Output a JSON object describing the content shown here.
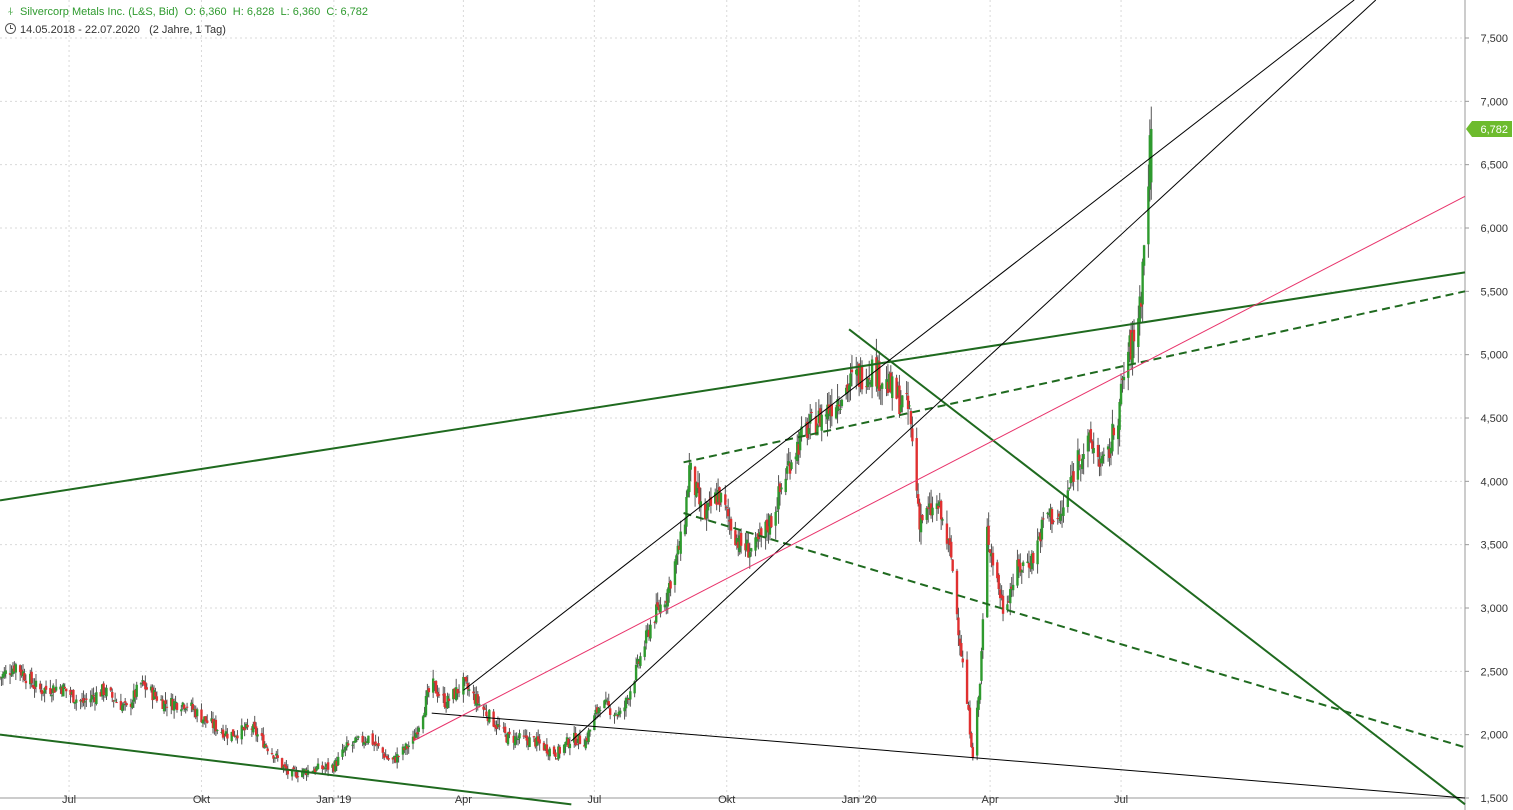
{
  "header": {
    "symbol_icon": "candlestick-icon",
    "instrument": "Silvercorp Metals Inc. (L&S, Bid)",
    "ohlc": {
      "open": "O: 6,360",
      "high": "H: 6,828",
      "low": "L: 6,360",
      "close": "C: 6,782"
    },
    "range": "14.05.2018 - 22.07.2020",
    "range_note": "(2 Jahre, 1 Tag)",
    "range_icon": "clock-icon"
  },
  "chart_data": {
    "type": "candlestick",
    "title": "Silvercorp Metals Inc. (L&S, Bid)",
    "period": "14.05.2018 - 22.07.2020",
    "y_axis": {
      "side": "right",
      "min": 1.5,
      "max": 7.8,
      "ticks": [
        "1,500",
        "2,000",
        "2,500",
        "3,000",
        "3,500",
        "4,000",
        "4,500",
        "5,000",
        "5,500",
        "6,000",
        "6,500",
        "7,000",
        "7,500"
      ],
      "tick_values": [
        1.5,
        2.0,
        2.5,
        3.0,
        3.5,
        4.0,
        4.5,
        5.0,
        5.5,
        6.0,
        6.5,
        7.0,
        7.5
      ]
    },
    "x_axis": {
      "start": "2018-05-14",
      "end": "2021-02-25",
      "labels": [
        "Jul",
        "Okt",
        "Jan '19",
        "Apr",
        "Jul",
        "Okt",
        "Jan '20",
        "Apr",
        "Jul"
      ],
      "label_dates": [
        "2018-07-01",
        "2018-10-01",
        "2019-01-01",
        "2019-04-01",
        "2019-07-01",
        "2019-10-01",
        "2020-01-01",
        "2020-04-01",
        "2020-07-01"
      ]
    },
    "grid": true,
    "last_price": {
      "label": "6,782",
      "value": 6.782,
      "color": "#6dbb2d"
    },
    "colors": {
      "up": "#2e9a2e",
      "down": "#e03030",
      "trend_dark": "#1f6a1f",
      "trend_black": "#000000",
      "trend_pink": "#e8336b"
    },
    "price_path": [
      [
        "2018-05-14",
        2.45
      ],
      [
        "2018-05-25",
        2.55
      ],
      [
        "2018-06-10",
        2.35
      ],
      [
        "2018-06-25",
        2.38
      ],
      [
        "2018-07-10",
        2.25
      ],
      [
        "2018-07-25",
        2.35
      ],
      [
        "2018-08-10",
        2.2
      ],
      [
        "2018-08-20",
        2.4
      ],
      [
        "2018-09-05",
        2.25
      ],
      [
        "2018-09-20",
        2.25
      ],
      [
        "2018-10-05",
        2.1
      ],
      [
        "2018-10-20",
        2.0
      ],
      [
        "2018-11-05",
        2.05
      ],
      [
        "2018-11-20",
        1.85
      ],
      [
        "2018-12-01",
        1.68
      ],
      [
        "2018-12-15",
        1.72
      ],
      [
        "2019-01-01",
        1.75
      ],
      [
        "2019-01-10",
        1.9
      ],
      [
        "2019-01-25",
        1.98
      ],
      [
        "2019-02-10",
        1.78
      ],
      [
        "2019-02-25",
        1.95
      ],
      [
        "2019-03-10",
        2.4
      ],
      [
        "2019-03-20",
        2.25
      ],
      [
        "2019-04-01",
        2.4
      ],
      [
        "2019-04-15",
        2.2
      ],
      [
        "2019-05-01",
        1.98
      ],
      [
        "2019-05-20",
        1.95
      ],
      [
        "2019-06-05",
        1.85
      ],
      [
        "2019-06-15",
        1.97
      ],
      [
        "2019-06-25",
        1.95
      ],
      [
        "2019-07-05",
        2.25
      ],
      [
        "2019-07-20",
        2.15
      ],
      [
        "2019-07-30",
        2.5
      ],
      [
        "2019-08-10",
        2.9
      ],
      [
        "2019-08-20",
        3.1
      ],
      [
        "2019-09-01",
        3.6
      ],
      [
        "2019-09-05",
        4.1
      ],
      [
        "2019-09-15",
        3.7
      ],
      [
        "2019-09-25",
        3.9
      ],
      [
        "2019-10-10",
        3.5
      ],
      [
        "2019-10-20",
        3.45
      ],
      [
        "2019-11-01",
        3.7
      ],
      [
        "2019-11-15",
        4.2
      ],
      [
        "2019-11-25",
        4.4
      ],
      [
        "2019-12-05",
        4.5
      ],
      [
        "2019-12-20",
        4.7
      ],
      [
        "2019-12-28",
        4.8
      ],
      [
        "2020-01-10",
        4.9
      ],
      [
        "2020-01-25",
        4.7
      ],
      [
        "2020-02-05",
        4.55
      ],
      [
        "2020-02-12",
        3.7
      ],
      [
        "2020-02-25",
        3.8
      ],
      [
        "2020-03-05",
        3.4
      ],
      [
        "2020-03-10",
        2.85
      ],
      [
        "2020-03-20",
        1.85
      ],
      [
        "2020-03-25",
        2.4
      ],
      [
        "2020-03-30",
        3.6
      ],
      [
        "2020-04-10",
        3.0
      ],
      [
        "2020-04-20",
        3.3
      ],
      [
        "2020-05-01",
        3.4
      ],
      [
        "2020-05-10",
        3.75
      ],
      [
        "2020-05-20",
        3.7
      ],
      [
        "2020-06-01",
        4.2
      ],
      [
        "2020-06-10",
        4.3
      ],
      [
        "2020-06-20",
        4.1
      ],
      [
        "2020-06-30",
        4.6
      ],
      [
        "2020-07-05",
        5.0
      ],
      [
        "2020-07-10",
        5.1
      ],
      [
        "2020-07-15",
        5.5
      ],
      [
        "2020-07-22",
        6.782
      ]
    ],
    "trendlines": [
      {
        "style": "solid",
        "color": "trend_dark",
        "width": 2,
        "from": [
          "2018-05-14",
          3.85
        ],
        "to": [
          "2021-02-25",
          5.65
        ]
      },
      {
        "style": "solid",
        "color": "trend_dark",
        "width": 2,
        "from": [
          "2018-05-14",
          2.0
        ],
        "to": [
          "2019-06-15",
          1.45
        ]
      },
      {
        "style": "solid",
        "color": "trend_dark",
        "width": 2,
        "from": [
          "2019-12-25",
          5.2
        ],
        "to": [
          "2021-02-25",
          1.45
        ]
      },
      {
        "style": "dashed",
        "color": "trend_dark",
        "width": 2,
        "from": [
          "2019-09-01",
          4.15
        ],
        "to": [
          "2021-02-25",
          5.5
        ]
      },
      {
        "style": "dashed",
        "color": "trend_dark",
        "width": 2,
        "from": [
          "2019-09-01",
          3.75
        ],
        "to": [
          "2021-02-25",
          1.9
        ]
      },
      {
        "style": "solid",
        "color": "trend_black",
        "width": 1,
        "from": [
          "2019-04-01",
          2.35
        ],
        "to": [
          "2020-12-10",
          7.8
        ]
      },
      {
        "style": "solid",
        "color": "trend_black",
        "width": 1,
        "from": [
          "2019-06-15",
          1.95
        ],
        "to": [
          "2020-12-25",
          7.8
        ]
      },
      {
        "style": "solid",
        "color": "trend_black",
        "width": 1,
        "from": [
          "2019-03-10",
          2.17
        ],
        "to": [
          "2021-02-25",
          1.5
        ]
      },
      {
        "style": "solid",
        "color": "trend_pink",
        "width": 1,
        "from": [
          "2019-02-25",
          1.95
        ],
        "to": [
          "2021-02-25",
          6.25
        ]
      }
    ]
  }
}
